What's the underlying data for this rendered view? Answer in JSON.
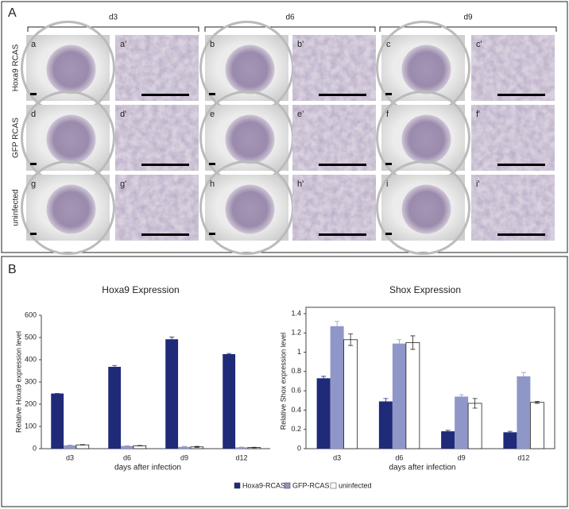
{
  "panel_a": {
    "label": "A",
    "days": [
      "d3",
      "d6",
      "d9"
    ],
    "rows": [
      {
        "label": "Hoxa9 RCAS",
        "cells": [
          "a",
          "a'",
          "b",
          "b'",
          "c",
          "c'"
        ]
      },
      {
        "label": "GFP RCAS",
        "cells": [
          "d",
          "d'",
          "e",
          "e'",
          "f",
          "f'"
        ]
      },
      {
        "label": "uninfected",
        "cells": [
          "g",
          "g'",
          "h",
          "h'",
          "i",
          "i'"
        ]
      }
    ]
  },
  "panel_b": {
    "label": "B"
  },
  "chart_data": [
    {
      "type": "bar",
      "title": "Hoxa9 Expression",
      "y_label": "Relative Hoxa9 expression level",
      "x_label": "days after infection",
      "categories": [
        "d3",
        "d6",
        "d9",
        "d12"
      ],
      "series": [
        {
          "name": "Hoxa9-RCAS",
          "color": "#1f2a78",
          "values": [
            248,
            368,
            492,
            425
          ],
          "errors": [
            0,
            6,
            10,
            3
          ]
        },
        {
          "name": "GFP-RCAS",
          "color": "#8f97c8",
          "values": [
            15,
            12,
            8,
            6
          ],
          "errors": [
            1,
            1,
            2,
            1
          ]
        },
        {
          "name": "uninfected",
          "color": "#ffffff",
          "values": [
            17,
            13,
            8,
            5
          ],
          "errors": [
            1,
            1,
            2,
            1
          ]
        }
      ],
      "ylim": [
        0,
        600
      ],
      "yticks": [
        0,
        100,
        200,
        300,
        400,
        500,
        600
      ]
    },
    {
      "type": "bar",
      "title": "Shox Expression",
      "y_label": "Relative Shox expression level",
      "x_label": "days after infection",
      "categories": [
        "d3",
        "d6",
        "d9",
        "d12"
      ],
      "series": [
        {
          "name": "Hoxa9-RCAS",
          "color": "#1f2a78",
          "values": [
            0.73,
            0.49,
            0.18,
            0.17
          ],
          "errors": [
            0.02,
            0.03,
            0.01,
            0.01
          ]
        },
        {
          "name": "GFP-RCAS",
          "color": "#8f97c8",
          "values": [
            1.27,
            1.09,
            0.54,
            0.75
          ],
          "errors": [
            0.05,
            0.04,
            0.02,
            0.04
          ]
        },
        {
          "name": "uninfected",
          "color": "#ffffff",
          "values": [
            1.13,
            1.1,
            0.47,
            0.48
          ],
          "errors": [
            0.06,
            0.07,
            0.05,
            0.01
          ]
        }
      ],
      "ylim": [
        0,
        1.4
      ],
      "yticks": [
        0,
        0.2,
        0.4,
        0.6,
        0.8,
        1,
        1.2,
        1.4
      ]
    }
  ]
}
